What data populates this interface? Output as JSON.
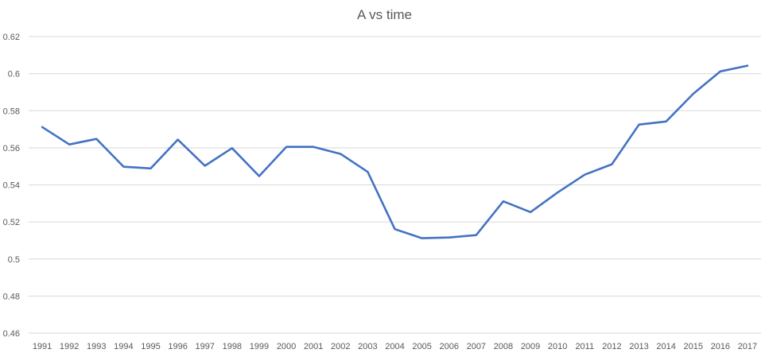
{
  "chart_data": {
    "type": "line",
    "title": "A vs time",
    "xlabel": "",
    "ylabel": "",
    "categories": [
      "1991",
      "1992",
      "1993",
      "1994",
      "1995",
      "1996",
      "1997",
      "1998",
      "1999",
      "2000",
      "2001",
      "2002",
      "2003",
      "2004",
      "2005",
      "2006",
      "2007",
      "2008",
      "2009",
      "2010",
      "2011",
      "2012",
      "2013",
      "2014",
      "2015",
      "2016",
      "2017"
    ],
    "series": [
      {
        "values": [
          0.5712,
          0.5618,
          0.5648,
          0.5498,
          0.5489,
          0.5644,
          0.5503,
          0.5598,
          0.5447,
          0.5605,
          0.5605,
          0.5567,
          0.547,
          0.5161,
          0.5112,
          0.5116,
          0.5129,
          0.5311,
          0.5253,
          0.5359,
          0.5455,
          0.5511,
          0.5725,
          0.5742,
          0.5891,
          0.6012,
          0.6043
        ]
      }
    ],
    "ylim": [
      0.46,
      0.62
    ],
    "yticks": [
      "0.46",
      "0.48",
      "0.5",
      "0.52",
      "0.54",
      "0.56",
      "0.58",
      "0.6",
      "0.62"
    ],
    "grid": "horizontal",
    "legend": "none",
    "line_color": "#4472C4",
    "grid_color": "#d9d9d9"
  }
}
